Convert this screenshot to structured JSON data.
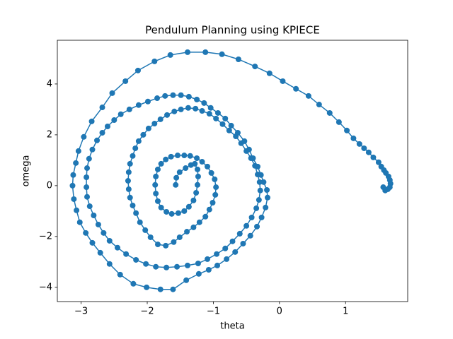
{
  "chart_data": {
    "type": "line",
    "title": "Pendulum Planning using KPIECE",
    "x_label": "theta",
    "y_label": "omega",
    "xlim": [
      -3.36,
      1.94
    ],
    "ylim": [
      -4.56,
      5.72
    ],
    "xticks": [
      {
        "value": -3,
        "label": "−3"
      },
      {
        "value": -2,
        "label": "−2"
      },
      {
        "value": -1,
        "label": "−1"
      },
      0,
      1
    ],
    "yticks": [
      {
        "value": -4,
        "label": "−4"
      },
      {
        "value": -2,
        "label": "−2"
      },
      0,
      2,
      4
    ],
    "grid": false,
    "marker": true,
    "x": [
      -1.57,
      -1.56,
      -1.51,
      -1.42,
      -1.34,
      -1.28,
      -1.24,
      -1.23,
      -1.24,
      -1.26,
      -1.3,
      -1.37,
      -1.44,
      -1.53,
      -1.63,
      -1.71,
      -1.79,
      -1.84,
      -1.87,
      -1.88,
      -1.87,
      -1.84,
      -1.79,
      -1.72,
      -1.64,
      -1.54,
      -1.44,
      -1.35,
      -1.25,
      -1.17,
      -1.09,
      -1.03,
      -0.98,
      -0.96,
      -0.97,
      -1.01,
      -1.06,
      -1.12,
      -1.21,
      -1.3,
      -1.4,
      -1.51,
      -1.6,
      -1.72,
      -1.84,
      -1.95,
      -2.03,
      -2.11,
      -2.17,
      -2.22,
      -2.26,
      -2.28,
      -2.29,
      -2.28,
      -2.26,
      -2.22,
      -2.18,
      -2.13,
      -2.06,
      -1.98,
      -1.89,
      -1.8,
      -1.7,
      -1.59,
      -1.49,
      -1.38,
      -1.27,
      -1.17,
      -1.06,
      -0.96,
      -0.86,
      -0.76,
      -0.66,
      -0.58,
      -0.5,
      -0.43,
      -0.37,
      -0.33,
      -0.3,
      -0.29,
      -0.31,
      -0.35,
      -0.42,
      -0.5,
      -0.6,
      -0.71,
      -0.82,
      -0.95,
      -1.09,
      -1.23,
      -1.39,
      -1.55,
      -1.71,
      -1.87,
      -2.02,
      -2.17,
      -2.32,
      -2.45,
      -2.57,
      -2.66,
      -2.74,
      -2.81,
      -2.87,
      -2.91,
      -2.92,
      -2.92,
      -2.91,
      -2.88,
      -2.83,
      -2.76,
      -2.68,
      -2.6,
      -2.5,
      -2.4,
      -2.27,
      -2.13,
      -1.99,
      -1.85,
      -1.73,
      -1.61,
      -1.49,
      -1.37,
      -1.25,
      -1.14,
      -1.04,
      -0.93,
      -0.82,
      -0.73,
      -0.63,
      -0.53,
      -0.46,
      -0.4,
      -0.33,
      -0.28,
      -0.24,
      -0.19,
      -0.18,
      -0.21,
      -0.27,
      -0.34,
      -0.44,
      -0.55,
      -0.67,
      -0.8,
      -0.94,
      -1.07,
      -1.22,
      -1.41,
      -1.61,
      -1.8,
      -2.01,
      -2.21,
      -2.41,
      -2.57,
      -2.71,
      -2.83,
      -2.93,
      -3.02,
      -3.07,
      -3.11,
      -3.13,
      -3.12,
      -3.08,
      -3.04,
      -2.96,
      -2.84,
      -2.68,
      -2.53,
      -2.33,
      -2.14,
      -1.89,
      -1.65,
      -1.39,
      -1.12,
      -0.87,
      -0.62,
      -0.37,
      -0.15,
      0.05,
      0.25,
      0.44,
      0.6,
      0.76,
      0.9,
      1.02,
      1.12,
      1.21,
      1.28,
      1.35,
      1.42,
      1.5,
      1.54,
      1.58,
      1.61,
      1.65,
      1.67,
      1.68,
      1.67,
      1.64,
      1.6,
      1.57
    ],
    "series": [
      {
        "color": "#1f77b4",
        "values": [
          0.03,
          0.31,
          0.53,
          0.69,
          0.81,
          0.86,
          0.64,
          0.36,
          0.03,
          -0.28,
          -0.58,
          -0.83,
          -1.0,
          -1.08,
          -1.11,
          -1.03,
          -0.86,
          -0.61,
          -0.31,
          0.03,
          0.36,
          0.64,
          0.86,
          1.03,
          1.14,
          1.19,
          1.19,
          1.17,
          1.08,
          0.94,
          0.75,
          0.5,
          0.25,
          -0.06,
          -0.36,
          -0.67,
          -0.94,
          -1.22,
          -1.44,
          -1.64,
          -1.81,
          -2.03,
          -2.22,
          -2.36,
          -2.31,
          -2.03,
          -1.75,
          -1.44,
          -1.08,
          -0.78,
          -0.47,
          -0.14,
          0.19,
          0.53,
          0.86,
          1.17,
          1.47,
          1.75,
          2.0,
          2.25,
          2.44,
          2.61,
          2.78,
          2.92,
          3.0,
          3.06,
          3.03,
          2.94,
          2.83,
          2.64,
          2.42,
          2.17,
          1.94,
          1.67,
          1.36,
          1.08,
          0.78,
          0.44,
          0.14,
          -0.19,
          -0.56,
          -0.89,
          -1.25,
          -1.58,
          -1.89,
          -2.19,
          -2.47,
          -2.69,
          -2.89,
          -3.06,
          -3.14,
          -3.19,
          -3.22,
          -3.19,
          -3.08,
          -2.92,
          -2.69,
          -2.44,
          -2.17,
          -1.86,
          -1.53,
          -1.17,
          -0.81,
          -0.44,
          -0.06,
          0.33,
          0.69,
          1.06,
          1.42,
          1.78,
          2.08,
          2.33,
          2.58,
          2.81,
          3.0,
          3.17,
          3.31,
          3.44,
          3.53,
          3.56,
          3.56,
          3.5,
          3.39,
          3.25,
          3.06,
          2.86,
          2.64,
          2.36,
          2.08,
          1.75,
          1.42,
          1.08,
          0.75,
          0.42,
          0.14,
          -0.17,
          -0.47,
          -0.86,
          -1.25,
          -1.61,
          -1.97,
          -2.28,
          -2.61,
          -2.89,
          -3.14,
          -3.31,
          -3.47,
          -3.72,
          -4.08,
          -4.08,
          -4.0,
          -3.86,
          -3.5,
          -3.08,
          -2.64,
          -2.25,
          -1.86,
          -1.44,
          -0.97,
          -0.53,
          0.0,
          0.42,
          0.89,
          1.36,
          1.92,
          2.53,
          3.08,
          3.64,
          4.11,
          4.53,
          4.89,
          5.14,
          5.25,
          5.25,
          5.17,
          4.97,
          4.69,
          4.42,
          4.11,
          3.81,
          3.53,
          3.19,
          2.86,
          2.5,
          2.17,
          1.86,
          1.64,
          1.47,
          1.31,
          1.11,
          0.92,
          0.75,
          0.61,
          0.5,
          0.36,
          0.22,
          0.08,
          -0.06,
          -0.14,
          -0.19,
          -0.06
        ]
      }
    ]
  }
}
